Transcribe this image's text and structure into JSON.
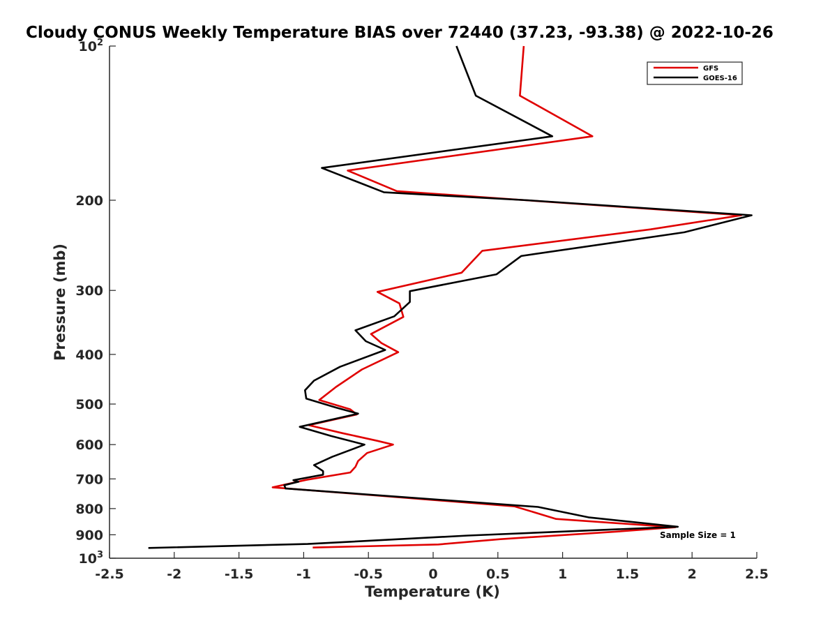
{
  "chart_data": {
    "type": "line",
    "title": "Cloudy CONUS Weekly Temperature BIAS over 72440 (37.23, -93.38) @ 2022-10-26",
    "xlabel": "Temperature (K)",
    "ylabel": "Pressure (mb)",
    "xlim": [
      -2.5,
      2.5
    ],
    "ylim": [
      100,
      1000
    ],
    "yscale": "log",
    "yreversed": true,
    "x_ticks": [
      -2.5,
      -2,
      -1.5,
      -1,
      -0.5,
      0,
      0.5,
      1,
      1.5,
      2,
      2.5
    ],
    "x_tick_labels": [
      "-2.5",
      "-2",
      "-1.5",
      "-1",
      "-0.5",
      "0",
      "0.5",
      "1",
      "1.5",
      "2",
      "2.5"
    ],
    "y_ticks": [
      {
        "value": 100,
        "base": "10",
        "exp": "2"
      },
      {
        "value": 200,
        "label": "200"
      },
      {
        "value": 300,
        "label": "300"
      },
      {
        "value": 400,
        "label": "400"
      },
      {
        "value": 500,
        "label": "500"
      },
      {
        "value": 600,
        "label": "600"
      },
      {
        "value": 700,
        "label": "700"
      },
      {
        "value": 800,
        "label": "800"
      },
      {
        "value": 900,
        "label": "900"
      },
      {
        "value": 1000,
        "base": "10",
        "exp": "3"
      }
    ],
    "grid": false,
    "legend_position": "top-right",
    "annotation": "Sample Size = 1",
    "series": [
      {
        "name": "GFS",
        "color": "#e00000",
        "points": [
          [
            0.7,
            100
          ],
          [
            0.67,
            125
          ],
          [
            1.23,
            150
          ],
          [
            -0.66,
            175
          ],
          [
            -0.28,
            192
          ],
          [
            0.72,
            200
          ],
          [
            2.38,
            214
          ],
          [
            1.68,
            228
          ],
          [
            0.38,
            251
          ],
          [
            0.22,
            277
          ],
          [
            -0.43,
            302
          ],
          [
            -0.26,
            318
          ],
          [
            -0.23,
            338
          ],
          [
            -0.48,
            365
          ],
          [
            -0.4,
            380
          ],
          [
            -0.27,
            396
          ],
          [
            -0.55,
            428
          ],
          [
            -0.75,
            463
          ],
          [
            -0.88,
            491
          ],
          [
            -0.64,
            512
          ],
          [
            -0.59,
            524
          ],
          [
            -0.96,
            550
          ],
          [
            -0.7,
            570
          ],
          [
            -0.43,
            590
          ],
          [
            -0.31,
            600
          ],
          [
            -0.51,
            623
          ],
          [
            -0.58,
            646
          ],
          [
            -0.6,
            663
          ],
          [
            -0.64,
            680
          ],
          [
            -0.98,
            703
          ],
          [
            -1.24,
            727
          ],
          [
            0.63,
            792
          ],
          [
            0.95,
            838
          ],
          [
            1.87,
            870
          ],
          [
            1.42,
            887
          ],
          [
            0.52,
            918
          ],
          [
            0.04,
            940
          ],
          [
            -0.93,
            953
          ]
        ]
      },
      {
        "name": "GOES-16",
        "color": "#000000",
        "points": [
          [
            0.18,
            100
          ],
          [
            0.33,
            125
          ],
          [
            0.92,
            150
          ],
          [
            -0.86,
            173
          ],
          [
            -0.38,
            193
          ],
          [
            0.73,
            200
          ],
          [
            2.46,
            214
          ],
          [
            1.94,
            231
          ],
          [
            0.68,
            257
          ],
          [
            0.49,
            279
          ],
          [
            -0.18,
            301
          ],
          [
            -0.18,
            316
          ],
          [
            -0.3,
            337
          ],
          [
            -0.6,
            359
          ],
          [
            -0.52,
            377
          ],
          [
            -0.37,
            392
          ],
          [
            -0.72,
            423
          ],
          [
            -0.92,
            450
          ],
          [
            -0.99,
            470
          ],
          [
            -0.98,
            488
          ],
          [
            -0.75,
            508
          ],
          [
            -0.58,
            522
          ],
          [
            -1.03,
            554
          ],
          [
            -0.79,
            577
          ],
          [
            -0.53,
            600
          ],
          [
            -0.78,
            634
          ],
          [
            -0.92,
            658
          ],
          [
            -0.85,
            676
          ],
          [
            -0.85,
            687
          ],
          [
            -1.08,
            704
          ],
          [
            -1.04,
            709
          ],
          [
            -1.15,
            720
          ],
          [
            -1.14,
            731
          ],
          [
            0.81,
            794
          ],
          [
            1.2,
            832
          ],
          [
            1.89,
            868
          ],
          [
            0.27,
            903
          ],
          [
            -0.97,
            938
          ],
          [
            -2.2,
            955
          ]
        ]
      }
    ]
  }
}
